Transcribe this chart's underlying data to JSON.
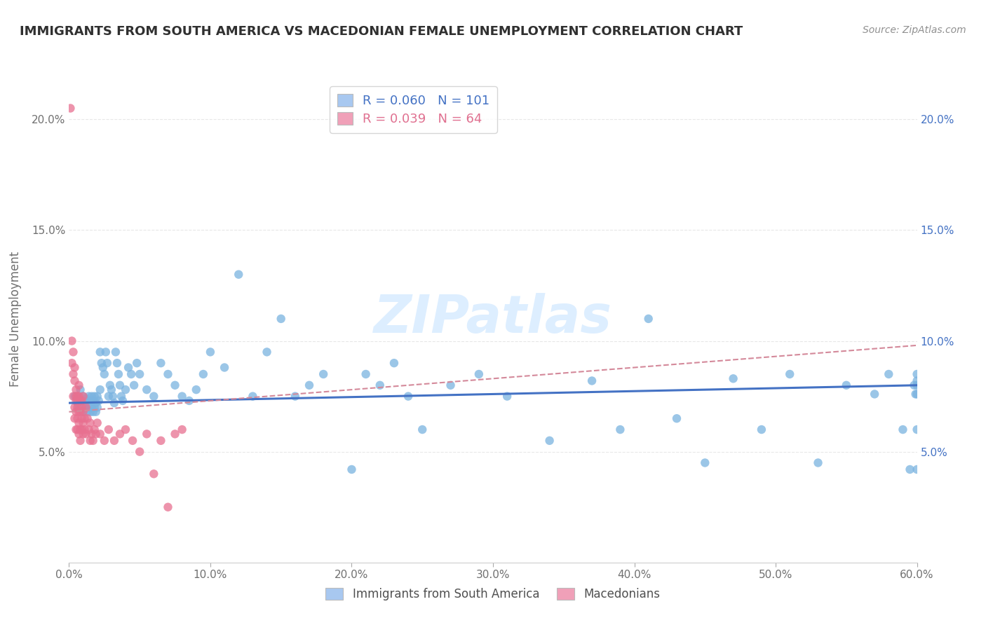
{
  "title": "IMMIGRANTS FROM SOUTH AMERICA VS MACEDONIAN FEMALE UNEMPLOYMENT CORRELATION CHART",
  "source": "Source: ZipAtlas.com",
  "ylabel": "Female Unemployment",
  "xlim": [
    0.0,
    0.6
  ],
  "ylim": [
    0.0,
    0.22
  ],
  "yticks": [
    0.05,
    0.1,
    0.15,
    0.2
  ],
  "ytick_labels": [
    "5.0%",
    "10.0%",
    "15.0%",
    "20.0%"
  ],
  "xticks": [
    0.0,
    0.1,
    0.2,
    0.3,
    0.4,
    0.5,
    0.6
  ],
  "xtick_labels": [
    "0.0%",
    "10.0%",
    "20.0%",
    "30.0%",
    "40.0%",
    "50.0%",
    "60.0%"
  ],
  "legend_top_labels": [
    "R = 0.060   N = 101",
    "R = 0.039   N = 64"
  ],
  "legend_top_colors": [
    "#a8c8f0",
    "#f0a0b8"
  ],
  "legend_top_text_colors": [
    "#4472c4",
    "#e07090"
  ],
  "legend_bottom_labels": [
    "Immigrants from South America",
    "Macedonians"
  ],
  "legend_bottom_colors": [
    "#a8c8f0",
    "#f0a0b8"
  ],
  "watermark": "ZIPatlas",
  "blue_scatter_color": "#7ab3e0",
  "pink_scatter_color": "#e87090",
  "blue_line_color": "#4472c4",
  "pink_line_color": "#d4899a",
  "grid_color": "#e8e8e8",
  "background_color": "#ffffff",
  "title_color": "#303030",
  "source_color": "#909090",
  "blue_x": [
    0.004,
    0.006,
    0.007,
    0.008,
    0.009,
    0.01,
    0.01,
    0.011,
    0.012,
    0.012,
    0.013,
    0.013,
    0.014,
    0.014,
    0.015,
    0.015,
    0.016,
    0.016,
    0.017,
    0.017,
    0.018,
    0.018,
    0.019,
    0.019,
    0.02,
    0.02,
    0.021,
    0.022,
    0.022,
    0.023,
    0.024,
    0.025,
    0.026,
    0.027,
    0.028,
    0.029,
    0.03,
    0.031,
    0.032,
    0.033,
    0.034,
    0.035,
    0.036,
    0.037,
    0.038,
    0.04,
    0.042,
    0.044,
    0.046,
    0.048,
    0.05,
    0.055,
    0.06,
    0.065,
    0.07,
    0.075,
    0.08,
    0.085,
    0.09,
    0.095,
    0.1,
    0.11,
    0.12,
    0.13,
    0.14,
    0.15,
    0.16,
    0.17,
    0.18,
    0.2,
    0.21,
    0.22,
    0.23,
    0.24,
    0.25,
    0.27,
    0.29,
    0.31,
    0.34,
    0.37,
    0.39,
    0.41,
    0.43,
    0.45,
    0.47,
    0.49,
    0.51,
    0.53,
    0.55,
    0.57,
    0.58,
    0.59,
    0.595,
    0.598,
    0.599,
    0.6,
    0.6,
    0.6,
    0.6,
    0.6,
    0.6
  ],
  "blue_y": [
    0.075,
    0.072,
    0.07,
    0.078,
    0.073,
    0.075,
    0.068,
    0.072,
    0.074,
    0.07,
    0.073,
    0.068,
    0.075,
    0.07,
    0.073,
    0.068,
    0.07,
    0.075,
    0.073,
    0.068,
    0.075,
    0.07,
    0.072,
    0.068,
    0.075,
    0.07,
    0.073,
    0.095,
    0.078,
    0.09,
    0.088,
    0.085,
    0.095,
    0.09,
    0.075,
    0.08,
    0.078,
    0.075,
    0.072,
    0.095,
    0.09,
    0.085,
    0.08,
    0.075,
    0.073,
    0.078,
    0.088,
    0.085,
    0.08,
    0.09,
    0.085,
    0.078,
    0.075,
    0.09,
    0.085,
    0.08,
    0.075,
    0.073,
    0.078,
    0.085,
    0.095,
    0.088,
    0.13,
    0.075,
    0.095,
    0.11,
    0.075,
    0.08,
    0.085,
    0.042,
    0.085,
    0.08,
    0.09,
    0.075,
    0.06,
    0.08,
    0.085,
    0.075,
    0.055,
    0.082,
    0.06,
    0.11,
    0.065,
    0.045,
    0.083,
    0.06,
    0.085,
    0.045,
    0.08,
    0.076,
    0.085,
    0.06,
    0.042,
    0.08,
    0.076,
    0.085,
    0.06,
    0.042,
    0.08,
    0.076,
    0.082
  ],
  "pink_x": [
    0.001,
    0.002,
    0.002,
    0.003,
    0.003,
    0.003,
    0.004,
    0.004,
    0.004,
    0.004,
    0.005,
    0.005,
    0.005,
    0.005,
    0.005,
    0.006,
    0.006,
    0.006,
    0.006,
    0.006,
    0.007,
    0.007,
    0.007,
    0.007,
    0.007,
    0.008,
    0.008,
    0.008,
    0.008,
    0.009,
    0.009,
    0.009,
    0.009,
    0.01,
    0.01,
    0.01,
    0.01,
    0.011,
    0.011,
    0.012,
    0.012,
    0.013,
    0.014,
    0.015,
    0.015,
    0.016,
    0.017,
    0.018,
    0.019,
    0.02,
    0.022,
    0.025,
    0.028,
    0.032,
    0.036,
    0.04,
    0.045,
    0.05,
    0.055,
    0.06,
    0.065,
    0.07,
    0.075,
    0.08
  ],
  "pink_y": [
    0.205,
    0.1,
    0.09,
    0.085,
    0.095,
    0.075,
    0.088,
    0.082,
    0.07,
    0.065,
    0.075,
    0.068,
    0.06,
    0.073,
    0.078,
    0.075,
    0.07,
    0.065,
    0.06,
    0.073,
    0.075,
    0.068,
    0.063,
    0.058,
    0.08,
    0.073,
    0.068,
    0.06,
    0.055,
    0.07,
    0.065,
    0.073,
    0.06,
    0.068,
    0.063,
    0.058,
    0.075,
    0.065,
    0.06,
    0.07,
    0.058,
    0.065,
    0.06,
    0.063,
    0.055,
    0.058,
    0.055,
    0.06,
    0.058,
    0.063,
    0.058,
    0.055,
    0.06,
    0.055,
    0.058,
    0.06,
    0.055,
    0.05,
    0.058,
    0.04,
    0.055,
    0.025,
    0.058,
    0.06
  ],
  "blue_trend_start_y": 0.072,
  "blue_trend_end_y": 0.08,
  "pink_trend_start_y": 0.068,
  "pink_trend_end_y": 0.098
}
